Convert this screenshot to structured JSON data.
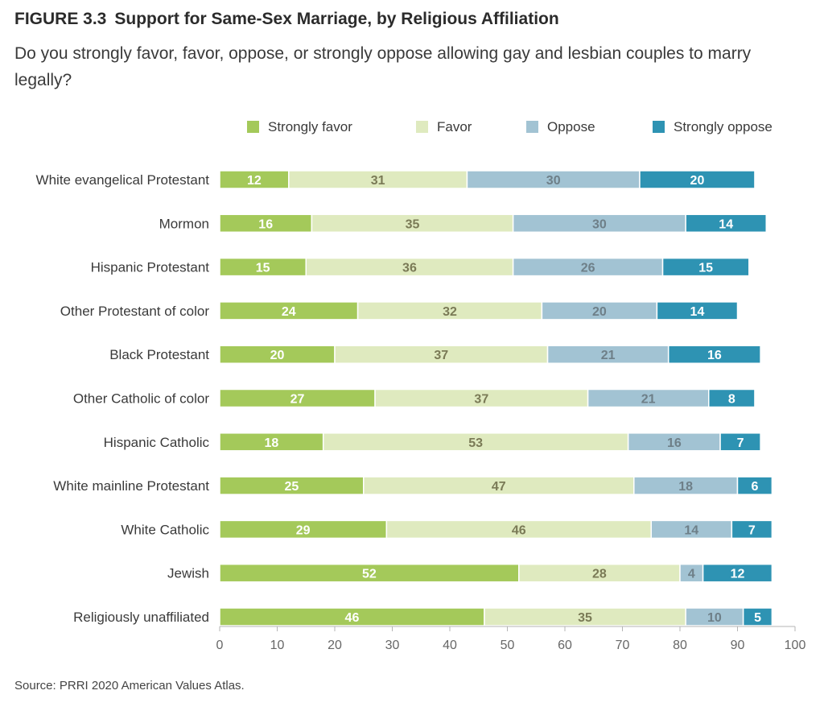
{
  "figure": {
    "number": "FIGURE 3.3",
    "title": "Support for Same-Sex Marriage, by Religious Affiliation",
    "subtitle": "Do you strongly favor, favor, oppose, or strongly oppose allowing gay and lesbian couples to marry legally?",
    "source": "Source: PRRI 2020 American Values Atlas."
  },
  "chart_data": {
    "type": "bar",
    "orientation": "horizontal",
    "stacked": true,
    "categories": [
      "White evangelical Protestant",
      "Mormon",
      "Hispanic Protestant",
      "Other Protestant of color",
      "Black Protestant",
      "Other Catholic of color",
      "Hispanic Catholic",
      "White mainline Protestant",
      "White Catholic",
      "Jewish",
      "Religiously unaffiliated"
    ],
    "series": [
      {
        "name": "Strongly favor",
        "color": "#a4c95a",
        "label_color": "#ffffff",
        "values": [
          12,
          16,
          15,
          24,
          20,
          27,
          18,
          25,
          29,
          52,
          46
        ]
      },
      {
        "name": "Favor",
        "color": "#dfeabf",
        "label_color": "#7a7a56",
        "values": [
          31,
          35,
          36,
          32,
          37,
          37,
          53,
          47,
          46,
          28,
          35
        ]
      },
      {
        "name": "Oppose",
        "color": "#a2c3d3",
        "label_color": "#6e7f88",
        "values": [
          30,
          30,
          26,
          20,
          21,
          21,
          16,
          18,
          14,
          4,
          10
        ]
      },
      {
        "name": "Strongly oppose",
        "color": "#2e93b3",
        "label_color": "#ffffff",
        "values": [
          20,
          14,
          15,
          14,
          16,
          8,
          7,
          6,
          7,
          12,
          5
        ]
      }
    ],
    "x_ticks": [
      0,
      10,
      20,
      30,
      40,
      50,
      60,
      70,
      80,
      90,
      100
    ],
    "xlim": [
      0,
      100
    ],
    "legend_position": "top",
    "grid": false
  }
}
